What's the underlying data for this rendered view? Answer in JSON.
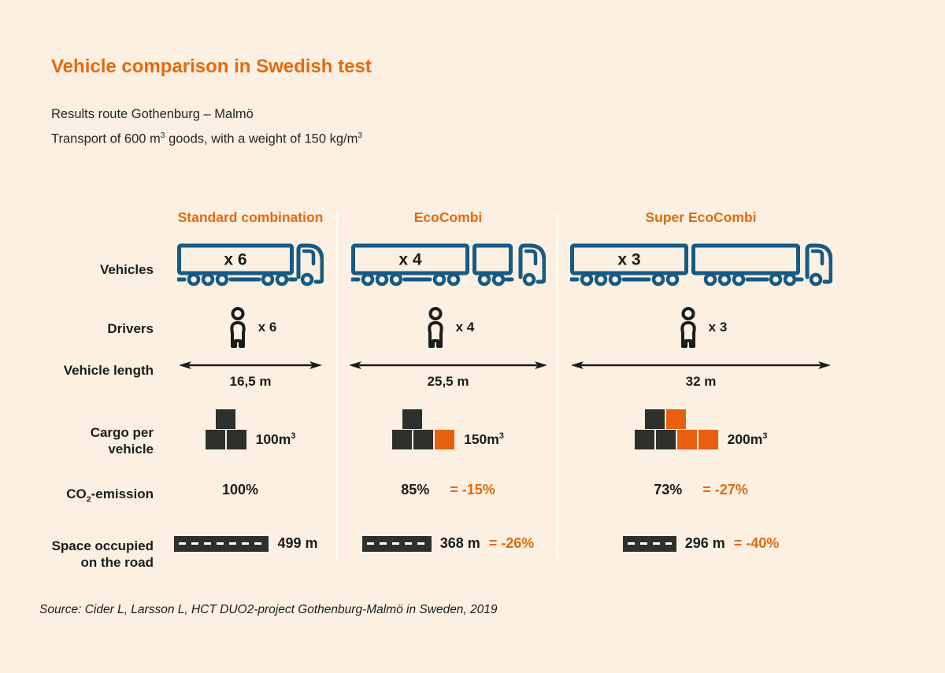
{
  "title": "Vehicle comparison in Swedish test",
  "subtitle": {
    "line1": "Results route Gothenburg – Malmö",
    "line2_part1": "Transport of 600 m",
    "line2_sup1": "3",
    "line2_part2": " goods, with a weight of 150 kg/m",
    "line2_sup2": "3"
  },
  "row_labels": {
    "vehicles": "Vehicles",
    "drivers": "Drivers",
    "vehicle_length": "Vehicle length",
    "cargo_line1": "Cargo per",
    "cargo_line2": "vehicle",
    "co2_base": "CO",
    "co2_sub": "2",
    "co2_suffix": "-emission",
    "space_line1": "Space occupied",
    "space_line2": "on the road"
  },
  "columns": [
    {
      "header": "Standard combination",
      "vehicle_count": "x 6",
      "driver_count": "x 6",
      "length": "16,5 m",
      "cargo_label": "100m",
      "cargo_sup": "3",
      "cargo_boxes": {
        "top": [
          "dark"
        ],
        "bottom": [
          "dark",
          "dark"
        ]
      },
      "co2_value": "100%",
      "co2_delta": "",
      "road_value": "499 m",
      "road_delta": ""
    },
    {
      "header": "EcoCombi",
      "vehicle_count": "x 4",
      "driver_count": "x 4",
      "length": "25,5 m",
      "cargo_label": "150m",
      "cargo_sup": "3",
      "cargo_boxes": {
        "top": [
          "dark"
        ],
        "bottom": [
          "dark",
          "dark",
          "orange"
        ]
      },
      "co2_value": "85%",
      "co2_delta": "= -15%",
      "road_value": "368 m",
      "road_delta": "= -26%"
    },
    {
      "header": "Super EcoCombi",
      "vehicle_count": "x 3",
      "driver_count": "x 3",
      "length": "32 m",
      "cargo_label": "200m",
      "cargo_sup": "3",
      "cargo_boxes": {
        "top": [
          "dark",
          "orange"
        ],
        "bottom": [
          "dark",
          "dark",
          "orange",
          "orange"
        ]
      },
      "co2_value": "73%",
      "co2_delta": "= -27%",
      "road_value": "296 m",
      "road_delta": "= -40%"
    }
  ],
  "source": "Source: Cider L, Larsson L, HCT DUO2-project Gothenburg-Malmö in Sweden, 2019",
  "colors": {
    "background": "#fbf0e1",
    "accent_orange": "#e7690f",
    "box_orange": "#e85f0e",
    "truck_blue": "#175a84",
    "dark_box": "#2d302b",
    "text": "#1c1c1a"
  }
}
